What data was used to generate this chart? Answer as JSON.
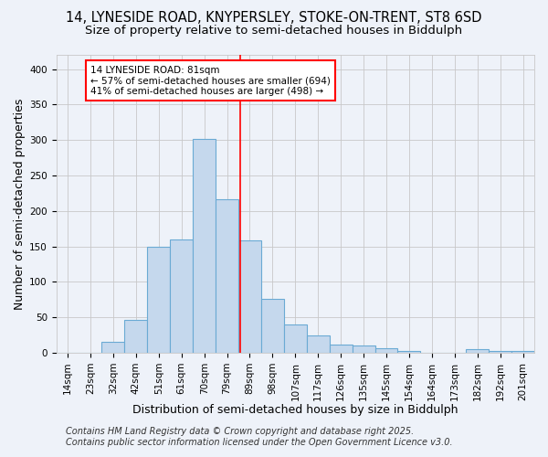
{
  "title1": "14, LYNESIDE ROAD, KNYPERSLEY, STOKE-ON-TRENT, ST8 6SD",
  "title2": "Size of property relative to semi-detached houses in Biddulph",
  "xlabel": "Distribution of semi-detached houses by size in Biddulph",
  "ylabel": "Number of semi-detached properties",
  "categories": [
    "14sqm",
    "23sqm",
    "32sqm",
    "42sqm",
    "51sqm",
    "61sqm",
    "70sqm",
    "79sqm",
    "89sqm",
    "98sqm",
    "107sqm",
    "117sqm",
    "126sqm",
    "135sqm",
    "145sqm",
    "154sqm",
    "164sqm",
    "173sqm",
    "182sqm",
    "192sqm",
    "201sqm"
  ],
  "values": [
    0,
    0,
    15,
    46,
    150,
    160,
    302,
    217,
    158,
    76,
    40,
    24,
    12,
    10,
    7,
    3,
    0,
    0,
    5,
    3,
    3
  ],
  "bar_color": "#c5d8ed",
  "bar_edge_color": "#6aaad4",
  "bar_edge_width": 0.8,
  "vline_x": 7.57,
  "vline_color": "red",
  "annotation_text": "14 LYNESIDE ROAD: 81sqm\n← 57% of semi-detached houses are smaller (694)\n41% of semi-detached houses are larger (498) →",
  "annotation_box_color": "white",
  "annotation_box_edge_color": "red",
  "ylim": [
    0,
    420
  ],
  "yticks": [
    0,
    50,
    100,
    150,
    200,
    250,
    300,
    350,
    400
  ],
  "footer1": "Contains HM Land Registry data © Crown copyright and database right 2025.",
  "footer2": "Contains public sector information licensed under the Open Government Licence v3.0.",
  "background_color": "#eef2f9",
  "grid_color": "#c8c8c8",
  "title_fontsize": 10.5,
  "subtitle_fontsize": 9.5,
  "axis_label_fontsize": 9,
  "tick_fontsize": 7.5,
  "annotation_fontsize": 7.5,
  "footer_fontsize": 7
}
